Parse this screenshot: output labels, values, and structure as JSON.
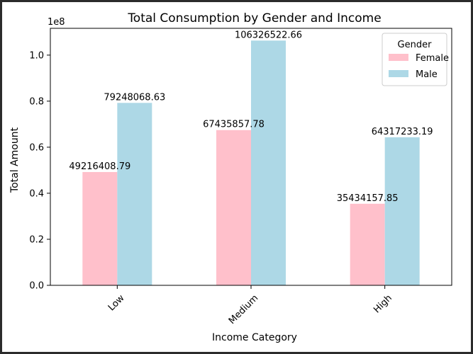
{
  "chart_data": {
    "type": "bar",
    "title": "Total Consumption by Gender and Income",
    "xlabel": "Income Category",
    "ylabel": "Total Amount",
    "y_offset_label": "1e8",
    "y_scale": 100000000,
    "categories": [
      "Low",
      "Medium",
      "High"
    ],
    "series": [
      {
        "name": "Female",
        "color": "#ffc0cb",
        "values": [
          49216408.79,
          67435857.78,
          35434157.85
        ],
        "labels": [
          "49216408.79",
          "67435857.78",
          "35434157.85"
        ]
      },
      {
        "name": "Male",
        "color": "#add8e6",
        "values": [
          79248068.63,
          106326522.66,
          64317233.19
        ],
        "labels": [
          "79248068.63",
          "106326522.66",
          "64317233.19"
        ]
      }
    ],
    "ylim": [
      0,
      111639848.8
    ],
    "yticks": [
      0,
      0.2,
      0.4,
      0.6,
      0.8,
      1.0
    ],
    "ytick_labels": [
      "0.0",
      "0.2",
      "0.4",
      "0.6",
      "0.8",
      "1.0"
    ],
    "legend": {
      "title": "Gender",
      "placement": "top-right"
    },
    "grid": false,
    "xtick_rotation": 45
  }
}
